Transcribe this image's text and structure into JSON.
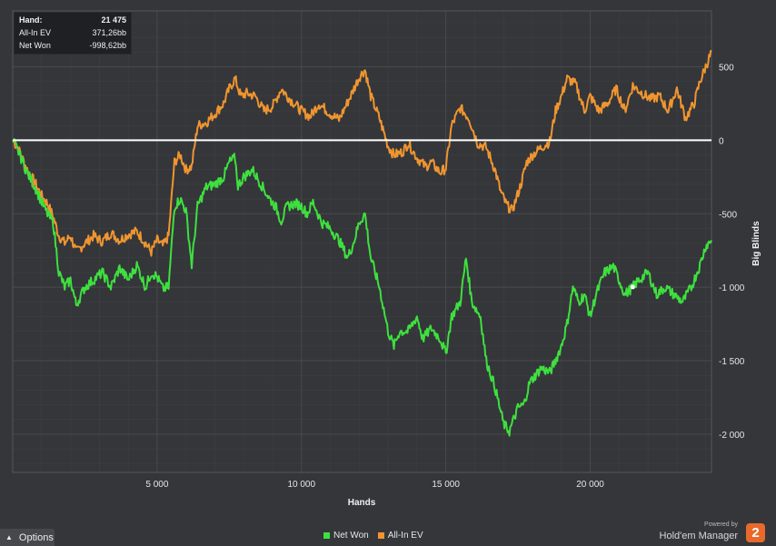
{
  "info_box": {
    "rows": [
      {
        "label": "Hand:",
        "value": "21 475"
      },
      {
        "label": "All-In EV",
        "value": "371,26bb"
      },
      {
        "label": "Net Won",
        "value": "-998,62bb"
      }
    ]
  },
  "options_button": {
    "label": "Options",
    "icon": "caret-up-icon"
  },
  "branding": {
    "powered_by": "Powered by",
    "name": "Hold'em Manager",
    "logo_text": "2",
    "logo_color": "#e8692b"
  },
  "colors": {
    "background": "#34363a",
    "grid": "#484a4e",
    "net_won": "#3ee03e",
    "all_in_ev": "#f0952f",
    "zero_line": "#ffffff"
  },
  "chart_data": {
    "type": "line",
    "xlabel": "Hands",
    "ylabel": "Big Blinds",
    "xlim": [
      0,
      24200
    ],
    "ylim": [
      -2260,
      880
    ],
    "x_ticks": [
      5000,
      10000,
      15000,
      20000
    ],
    "x_tick_labels": [
      "5 000",
      "10 000",
      "15 000",
      "20 000"
    ],
    "y_ticks": [
      500,
      0,
      -500,
      -1000,
      -1500,
      -2000
    ],
    "y_tick_labels": [
      "500",
      "0",
      "-500",
      "-1 000",
      "-1 500",
      "-2 000"
    ],
    "grid": true,
    "legend_position": "bottom-center",
    "series": [
      {
        "name": "Net Won",
        "color": "#3ee03e",
        "points": [
          [
            0,
            0
          ],
          [
            200,
            -80
          ],
          [
            500,
            -220
          ],
          [
            800,
            -330
          ],
          [
            1000,
            -420
          ],
          [
            1200,
            -500
          ],
          [
            1400,
            -560
          ],
          [
            1600,
            -900
          ],
          [
            1800,
            -1000
          ],
          [
            2000,
            -950
          ],
          [
            2200,
            -1120
          ],
          [
            2500,
            -1000
          ],
          [
            2800,
            -950
          ],
          [
            3100,
            -900
          ],
          [
            3400,
            -1000
          ],
          [
            3700,
            -870
          ],
          [
            4000,
            -950
          ],
          [
            4300,
            -850
          ],
          [
            4600,
            -1000
          ],
          [
            4800,
            -900
          ],
          [
            5000,
            -930
          ],
          [
            5200,
            -1010
          ],
          [
            5400,
            -1000
          ],
          [
            5600,
            -450
          ],
          [
            5800,
            -400
          ],
          [
            6000,
            -480
          ],
          [
            6200,
            -850
          ],
          [
            6400,
            -450
          ],
          [
            6700,
            -320
          ],
          [
            7000,
            -300
          ],
          [
            7300,
            -250
          ],
          [
            7500,
            -150
          ],
          [
            7700,
            -120
          ],
          [
            7800,
            -310
          ],
          [
            8000,
            -250
          ],
          [
            8300,
            -200
          ],
          [
            8600,
            -300
          ],
          [
            8900,
            -400
          ],
          [
            9100,
            -450
          ],
          [
            9300,
            -550
          ],
          [
            9500,
            -450
          ],
          [
            9800,
            -430
          ],
          [
            10000,
            -450
          ],
          [
            10200,
            -500
          ],
          [
            10400,
            -420
          ],
          [
            10700,
            -560
          ],
          [
            11000,
            -600
          ],
          [
            11300,
            -680
          ],
          [
            11600,
            -800
          ],
          [
            11800,
            -700
          ],
          [
            12000,
            -560
          ],
          [
            12200,
            -500
          ],
          [
            12400,
            -800
          ],
          [
            12700,
            -1000
          ],
          [
            13000,
            -1300
          ],
          [
            13200,
            -1400
          ],
          [
            13400,
            -1300
          ],
          [
            13700,
            -1300
          ],
          [
            14000,
            -1200
          ],
          [
            14200,
            -1350
          ],
          [
            14500,
            -1280
          ],
          [
            14800,
            -1350
          ],
          [
            15000,
            -1450
          ],
          [
            15200,
            -1200
          ],
          [
            15500,
            -1100
          ],
          [
            15700,
            -800
          ],
          [
            15900,
            -1100
          ],
          [
            16200,
            -1200
          ],
          [
            16400,
            -1500
          ],
          [
            16700,
            -1680
          ],
          [
            17000,
            -1930
          ],
          [
            17200,
            -1980
          ],
          [
            17500,
            -1820
          ],
          [
            17700,
            -1800
          ],
          [
            17900,
            -1650
          ],
          [
            18100,
            -1600
          ],
          [
            18300,
            -1550
          ],
          [
            18600,
            -1580
          ],
          [
            18800,
            -1500
          ],
          [
            19000,
            -1400
          ],
          [
            19200,
            -1250
          ],
          [
            19400,
            -1000
          ],
          [
            19600,
            -1100
          ],
          [
            19800,
            -1050
          ],
          [
            20000,
            -1200
          ],
          [
            20200,
            -1050
          ],
          [
            20500,
            -900
          ],
          [
            20800,
            -860
          ],
          [
            21000,
            -950
          ],
          [
            21200,
            -1050
          ],
          [
            21475,
            -998.62
          ],
          [
            21700,
            -950
          ],
          [
            22000,
            -900
          ],
          [
            22300,
            -1050
          ],
          [
            22600,
            -1000
          ],
          [
            22900,
            -1050
          ],
          [
            23200,
            -1100
          ],
          [
            23500,
            -1000
          ],
          [
            23800,
            -850
          ],
          [
            24000,
            -720
          ],
          [
            24200,
            -680
          ]
        ]
      },
      {
        "name": "All-In EV",
        "color": "#f0952f",
        "points": [
          [
            0,
            0
          ],
          [
            200,
            -60
          ],
          [
            500,
            -200
          ],
          [
            800,
            -300
          ],
          [
            1000,
            -380
          ],
          [
            1200,
            -430
          ],
          [
            1400,
            -520
          ],
          [
            1600,
            -650
          ],
          [
            1800,
            -700
          ],
          [
            2000,
            -650
          ],
          [
            2200,
            -760
          ],
          [
            2500,
            -700
          ],
          [
            2800,
            -650
          ],
          [
            3100,
            -690
          ],
          [
            3400,
            -630
          ],
          [
            3700,
            -680
          ],
          [
            4000,
            -640
          ],
          [
            4300,
            -620
          ],
          [
            4600,
            -700
          ],
          [
            4800,
            -760
          ],
          [
            5000,
            -680
          ],
          [
            5200,
            -720
          ],
          [
            5400,
            -650
          ],
          [
            5600,
            -150
          ],
          [
            5800,
            -100
          ],
          [
            6000,
            -200
          ],
          [
            6200,
            -180
          ],
          [
            6400,
            100
          ],
          [
            6700,
            120
          ],
          [
            7000,
            180
          ],
          [
            7300,
            250
          ],
          [
            7500,
            350
          ],
          [
            7700,
            420
          ],
          [
            7900,
            300
          ],
          [
            8100,
            320
          ],
          [
            8400,
            300
          ],
          [
            8700,
            200
          ],
          [
            9000,
            230
          ],
          [
            9300,
            350
          ],
          [
            9600,
            280
          ],
          [
            10000,
            200
          ],
          [
            10300,
            160
          ],
          [
            10600,
            250
          ],
          [
            11000,
            180
          ],
          [
            11300,
            140
          ],
          [
            11700,
            300
          ],
          [
            12000,
            430
          ],
          [
            12200,
            480
          ],
          [
            12400,
            300
          ],
          [
            12700,
            150
          ],
          [
            13000,
            -40
          ],
          [
            13200,
            -100
          ],
          [
            13500,
            -80
          ],
          [
            13700,
            -20
          ],
          [
            14000,
            -120
          ],
          [
            14300,
            -180
          ],
          [
            14500,
            -150
          ],
          [
            14800,
            -220
          ],
          [
            15000,
            -190
          ],
          [
            15200,
            100
          ],
          [
            15500,
            220
          ],
          [
            15800,
            150
          ],
          [
            16100,
            -20
          ],
          [
            16400,
            -50
          ],
          [
            16700,
            -200
          ],
          [
            16900,
            -350
          ],
          [
            17100,
            -440
          ],
          [
            17300,
            -480
          ],
          [
            17600,
            -300
          ],
          [
            17800,
            -150
          ],
          [
            18000,
            -100
          ],
          [
            18300,
            -50
          ],
          [
            18600,
            -10
          ],
          [
            18800,
            200
          ],
          [
            19000,
            300
          ],
          [
            19200,
            420
          ],
          [
            19500,
            380
          ],
          [
            19800,
            200
          ],
          [
            20000,
            300
          ],
          [
            20300,
            200
          ],
          [
            20600,
            250
          ],
          [
            20900,
            350
          ],
          [
            21200,
            200
          ],
          [
            21475,
            371.26
          ],
          [
            21800,
            320
          ],
          [
            22100,
            280
          ],
          [
            22400,
            300
          ],
          [
            22700,
            200
          ],
          [
            23000,
            350
          ],
          [
            23300,
            150
          ],
          [
            23600,
            250
          ],
          [
            23800,
            400
          ],
          [
            24000,
            500
          ],
          [
            24200,
            600
          ]
        ]
      }
    ]
  }
}
